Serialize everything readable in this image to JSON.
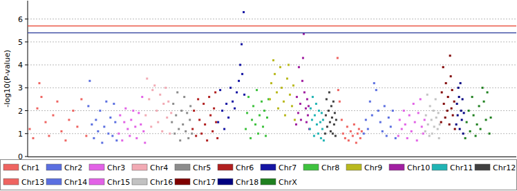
{
  "chart_data": {
    "type": "scatter",
    "y_label": "-log10(P-value)",
    "xlim": [
      0,
      708
    ],
    "ylim": [
      0,
      6.8
    ],
    "yticks": [
      0,
      1,
      2,
      3,
      4,
      5,
      6
    ],
    "grid": true,
    "tick_labels": "y",
    "legend": "bottom",
    "marker": "square",
    "thresholds": [
      {
        "value": 5.7,
        "color": "#e8402c"
      },
      {
        "value": 5.4,
        "color": "#2a3a9a"
      }
    ],
    "series": [
      {
        "name": "Chr1",
        "color": "#ef6461",
        "x": [
          3,
          8,
          14,
          17,
          20,
          26,
          31,
          37,
          43,
          49,
          55,
          60,
          66,
          72,
          78,
          85
        ],
        "values": [
          1.2,
          0.8,
          2.1,
          3.2,
          2.6,
          1.5,
          0.9,
          1.8,
          2.4,
          1.1,
          0.7,
          1.6,
          2.0,
          1.3,
          2.5,
          0.9
        ]
      },
      {
        "name": "Chr2",
        "color": "#5b6fe0",
        "x": [
          88,
          90,
          93,
          96,
          99,
          102,
          105,
          108,
          111,
          114,
          117,
          120,
          123,
          125,
          127,
          129
        ],
        "values": [
          2.2,
          3.3,
          1.4,
          0.8,
          1.6,
          1.1,
          2.0,
          0.6,
          1.3,
          2.4,
          1.0,
          1.7,
          0.9,
          2.3,
          1.5,
          0.7
        ]
      },
      {
        "name": "Chr3",
        "color": "#e262e6",
        "x": [
          132,
          134,
          137,
          140,
          142,
          145,
          148,
          150,
          153,
          156,
          158,
          161,
          164,
          166,
          168,
          170
        ],
        "values": [
          1.0,
          1.8,
          0.7,
          1.5,
          2.1,
          1.2,
          0.9,
          1.6,
          2.0,
          1.3,
          0.8,
          1.9,
          1.4,
          2.6,
          1.1,
          0.6
        ]
      },
      {
        "name": "Chr4",
        "color": "#f2aab4",
        "x": [
          171,
          173,
          176,
          179,
          181,
          184,
          187,
          189,
          192,
          195,
          197,
          200,
          202,
          204,
          206,
          208
        ],
        "values": [
          1.8,
          3.4,
          2.5,
          1.3,
          2.9,
          3.1,
          2.0,
          1.5,
          2.7,
          1.1,
          2.3,
          3.0,
          1.7,
          2.4,
          1.0,
          1.9
        ]
      },
      {
        "name": "Chr5",
        "color": "#8c8c8c",
        "x": [
          209,
          211,
          213,
          215,
          217,
          219,
          221,
          223,
          225,
          227,
          229,
          231,
          233,
          235,
          236,
          238
        ],
        "values": [
          1.5,
          2.3,
          1.0,
          1.8,
          2.8,
          1.2,
          0.7,
          2.0,
          1.4,
          2.6,
          1.1,
          1.9,
          0.8,
          1.6,
          2.2,
          1.0
        ]
      },
      {
        "name": "Chr6",
        "color": "#b11f1f",
        "x": [
          239,
          241,
          244,
          247,
          249,
          252,
          255,
          257,
          260,
          263,
          265,
          268,
          270,
          272,
          273,
          275
        ],
        "values": [
          1.2,
          2.0,
          0.9,
          2.5,
          1.6,
          1.0,
          2.3,
          1.4,
          0.7,
          2.6,
          1.8,
          1.1,
          2.1,
          2.8,
          1.5,
          0.8
        ]
      },
      {
        "name": "Chr7",
        "color": "#1515a3",
        "x": [
          276,
          279,
          282,
          285,
          288,
          291,
          294,
          297,
          300,
          303,
          306,
          308,
          310,
          311,
          313,
          314
        ],
        "values": [
          1.5,
          2.9,
          2.0,
          1.2,
          2.3,
          1.7,
          3.0,
          2.4,
          2.1,
          2.8,
          3.3,
          4.0,
          4.9,
          3.6,
          6.3,
          2.7
        ]
      },
      {
        "name": "Chr8",
        "color": "#3fc23f",
        "x": [
          316,
          318,
          320,
          323,
          325,
          327,
          330,
          332,
          334,
          336,
          339,
          341,
          343,
          345,
          347,
          349
        ],
        "values": [
          1.2,
          1.9,
          2.6,
          0.8,
          1.6,
          2.2,
          1.4,
          2.9,
          1.0,
          1.8,
          2.4,
          1.3,
          2.0,
          0.9,
          1.7,
          2.5
        ]
      },
      {
        "name": "Chr9",
        "color": "#b9b91e",
        "x": [
          351,
          353,
          356,
          358,
          361,
          363,
          366,
          368,
          371,
          373,
          376,
          378,
          380,
          383,
          385,
          387
        ],
        "values": [
          2.5,
          3.2,
          4.2,
          3.6,
          2.8,
          2.1,
          3.9,
          3.0,
          2.4,
          1.8,
          3.4,
          4.0,
          2.7,
          2.2,
          3.1,
          1.6
        ]
      },
      {
        "name": "Chr10",
        "color": "#a11fa1",
        "x": [
          389,
          390,
          392,
          393,
          395,
          396,
          398,
          399,
          400,
          401,
          403,
          404,
          405,
          406,
          407,
          408
        ],
        "values": [
          1.4,
          2.6,
          1.9,
          3.9,
          2.3,
          1.6,
          3.3,
          4.3,
          5.35,
          2.8,
          2.1,
          1.5,
          2.5,
          1.8,
          2.2,
          1.2
        ]
      },
      {
        "name": "Chr11",
        "color": "#20b4b4",
        "x": [
          409,
          410,
          412,
          413,
          415,
          416,
          418,
          419,
          421,
          422,
          424,
          425,
          426,
          427,
          428,
          429
        ],
        "values": [
          1.2,
          2.1,
          1.6,
          2.6,
          0.9,
          1.8,
          2.3,
          1.4,
          1.0,
          2.0,
          1.5,
          0.8,
          1.9,
          1.2,
          1.6,
          0.7
        ]
      },
      {
        "name": "Chr12",
        "color": "#404040",
        "x": [
          431,
          432,
          433,
          434,
          436,
          437,
          438,
          439,
          440,
          441,
          442,
          443,
          444,
          445,
          446,
          447
        ],
        "values": [
          1.0,
          1.8,
          2.5,
          1.3,
          2.0,
          2.8,
          1.5,
          1.1,
          2.2,
          1.7,
          1.0,
          2.4,
          1.4,
          1.9,
          0.9,
          1.6
        ]
      },
      {
        "name": "Chr13",
        "color": "#ef6461",
        "x": [
          449,
          450,
          452,
          455,
          457,
          460,
          463,
          465,
          468,
          471,
          473,
          476,
          478,
          480,
          482,
          484
        ],
        "values": [
          4.3,
          2.9,
          2.4,
          1.6,
          1.0,
          0.8,
          1.3,
          0.7,
          1.1,
          0.9,
          1.4,
          0.6,
          1.0,
          1.2,
          0.8,
          1.1
        ]
      },
      {
        "name": "Chr14",
        "color": "#5b6fe0",
        "x": [
          487,
          490,
          493,
          496,
          499,
          502,
          505,
          508,
          511,
          514,
          517,
          520,
          523,
          526,
          529,
          533
        ],
        "values": [
          1.0,
          1.6,
          1.2,
          2.4,
          1.8,
          3.2,
          2.9,
          2.0,
          1.5,
          1.1,
          2.2,
          0.9,
          1.7,
          1.3,
          2.0,
          0.8
        ]
      },
      {
        "name": "Chr15",
        "color": "#e262e6",
        "x": [
          537,
          539,
          542,
          545,
          547,
          550,
          553,
          556,
          559,
          561,
          564,
          566,
          569,
          571,
          573,
          575
        ],
        "values": [
          0.9,
          1.6,
          1.2,
          2.0,
          1.4,
          0.8,
          1.8,
          1.1,
          2.3,
          1.5,
          0.7,
          1.9,
          2.5,
          1.3,
          1.0,
          1.6
        ]
      },
      {
        "name": "Chr16",
        "color": "#c2c2c2",
        "x": [
          576,
          577,
          579,
          580,
          582,
          583,
          585,
          586,
          588,
          589,
          591,
          592,
          594,
          595,
          596,
          597
        ],
        "values": [
          1.1,
          1.8,
          2.7,
          1.4,
          0.9,
          2.2,
          1.6,
          1.0,
          2.0,
          1.3,
          2.5,
          1.7,
          1.2,
          1.9,
          0.8,
          1.4
        ]
      },
      {
        "name": "Chr17",
        "color": "#7f0000",
        "x": [
          599,
          600,
          602,
          603,
          605,
          606,
          608,
          609,
          611,
          612,
          613,
          614,
          615,
          616,
          618,
          619
        ],
        "values": [
          1.5,
          2.8,
          3.9,
          2.3,
          1.7,
          3.2,
          2.0,
          2.6,
          1.4,
          4.4,
          3.5,
          2.1,
          2.9,
          1.8,
          2.4,
          1.2
        ]
      },
      {
        "name": "Chr18",
        "color": "#000080",
        "x": [
          621,
          622,
          623,
          624,
          625,
          626,
          627,
          628,
          629,
          630,
          631,
          632
        ],
        "values": [
          1.4,
          2.3,
          1.8,
          3.0,
          2.6,
          1.2,
          3.2,
          2.0,
          1.6,
          2.5,
          1.0,
          1.9
        ]
      },
      {
        "name": "ChrX",
        "color": "#1f801f",
        "x": [
          634,
          636,
          639,
          641,
          644,
          646,
          649,
          651,
          654,
          656,
          659,
          661,
          664,
          666,
          669,
          671
        ],
        "values": [
          0.8,
          1.5,
          2.0,
          1.1,
          2.6,
          1.8,
          0.9,
          1.4,
          2.2,
          1.2,
          3.0,
          2.4,
          1.6,
          2.8,
          1.0,
          1.7
        ]
      }
    ]
  }
}
